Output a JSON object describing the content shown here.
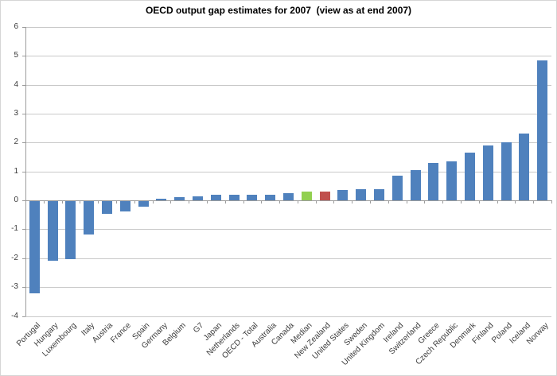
{
  "chart_data": {
    "type": "bar",
    "title": "OECD output gap estimates for 2007  (view as at end 2007)",
    "xlabel": "",
    "ylabel": "",
    "categories": [
      "Portugal",
      "Hungary",
      "Luxembourg",
      "Italy",
      "Austria",
      "France",
      "Spain",
      "Germany",
      "Belgium",
      "G7",
      "Japan",
      "Netherlands",
      "OECD - Total",
      "Australia",
      "Canada",
      "Median",
      "New Zealand",
      "United States",
      "Sweden",
      "United Kingdom",
      "Ireland",
      "Switzerland",
      "Greece",
      "Czech Republic",
      "Denmark",
      "Finland",
      "Poland",
      "Iceland",
      "Norway"
    ],
    "values": [
      -3.2,
      -2.05,
      -2.0,
      -1.15,
      -0.45,
      -0.35,
      -0.2,
      0.05,
      0.1,
      0.15,
      0.2,
      0.2,
      0.2,
      0.2,
      0.25,
      0.3,
      0.3,
      0.35,
      0.4,
      0.4,
      0.85,
      1.05,
      1.3,
      1.35,
      1.65,
      1.9,
      2.0,
      2.3,
      4.85
    ],
    "ylim": [
      -4,
      6
    ],
    "ytick_step": 1,
    "grid": true,
    "legend": "none",
    "bar_colors": {
      "default": "#4F81BD",
      "overrides": {
        "Median": "#92D050",
        "New Zealand": "#C0504D"
      }
    },
    "axis_color": "#9c9c9c",
    "grid_color": "#c9c9c9",
    "text_color": "#3a3a3a"
  }
}
